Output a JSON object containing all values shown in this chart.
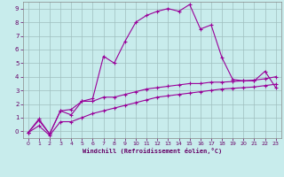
{
  "bg_color": "#c8ecec",
  "line_color": "#990099",
  "grid_color": "#9fbfbf",
  "xlabel": "Windchill (Refroidissement éolien,°C)",
  "xlabel_color": "#660066",
  "tick_color": "#660066",
  "ylim": [
    -0.5,
    9.5
  ],
  "xlim": [
    -0.5,
    23.5
  ],
  "yticks": [
    0,
    1,
    2,
    3,
    4,
    5,
    6,
    7,
    8,
    9
  ],
  "xticks": [
    0,
    1,
    2,
    3,
    4,
    5,
    6,
    7,
    8,
    9,
    10,
    11,
    12,
    13,
    14,
    15,
    16,
    17,
    18,
    19,
    20,
    21,
    22,
    23
  ],
  "series1_x": [
    0,
    1,
    2,
    3,
    4,
    5,
    6,
    7,
    8,
    9,
    10,
    11,
    12,
    13,
    14,
    15,
    16,
    17,
    18,
    19,
    20,
    21,
    22,
    23
  ],
  "series1_y": [
    -0.1,
    0.8,
    -0.2,
    1.5,
    1.2,
    2.2,
    2.4,
    5.5,
    5.0,
    6.6,
    8.0,
    8.5,
    8.8,
    9.0,
    8.8,
    9.3,
    7.5,
    7.8,
    5.4,
    3.8,
    3.7,
    3.7,
    4.4,
    3.2
  ],
  "series2_x": [
    0,
    1,
    2,
    3,
    4,
    5,
    6,
    7,
    8,
    9,
    10,
    11,
    12,
    13,
    14,
    15,
    16,
    17,
    18,
    19,
    20,
    21,
    22,
    23
  ],
  "series2_y": [
    -0.1,
    0.9,
    -0.2,
    1.5,
    1.6,
    2.2,
    2.2,
    2.5,
    2.5,
    2.7,
    2.9,
    3.1,
    3.2,
    3.3,
    3.4,
    3.5,
    3.5,
    3.6,
    3.6,
    3.65,
    3.7,
    3.75,
    3.85,
    4.0
  ],
  "series3_x": [
    0,
    1,
    2,
    3,
    4,
    5,
    6,
    7,
    8,
    9,
    10,
    11,
    12,
    13,
    14,
    15,
    16,
    17,
    18,
    19,
    20,
    21,
    22,
    23
  ],
  "series3_y": [
    -0.1,
    0.4,
    -0.3,
    0.7,
    0.7,
    1.0,
    1.3,
    1.5,
    1.7,
    1.9,
    2.1,
    2.3,
    2.5,
    2.6,
    2.7,
    2.8,
    2.9,
    3.0,
    3.1,
    3.15,
    3.2,
    3.25,
    3.35,
    3.45
  ]
}
